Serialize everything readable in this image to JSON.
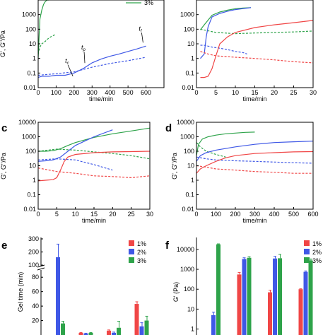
{
  "colors": {
    "red": "#f04646",
    "blue": "#3f58e6",
    "green": "#2ea34a",
    "axis": "#000000"
  },
  "chart_data": [
    {
      "id": "a",
      "panel_label": "",
      "type": "line",
      "xscale": "linear",
      "yscale": "log",
      "xlim": [
        0,
        700
      ],
      "ylim": [
        0.01,
        10000
      ],
      "xticks": [
        "0",
        "100",
        "200",
        "300",
        "400",
        "500",
        "600"
      ],
      "yticks": [
        "0.01",
        "0.1",
        "1",
        "10",
        "100",
        "1000"
      ],
      "xlabel": "time/min",
      "ylabel": "G', G''/Pa",
      "legend": {
        "position": "top-right",
        "entries": [
          {
            "label": "3%",
            "color": "green"
          }
        ]
      },
      "annotations": [
        {
          "text": "t",
          "sub": "c",
          "x": 150,
          "y": 0.5
        },
        {
          "text": "t",
          "sub": "p",
          "x": 240,
          "y": 4
        },
        {
          "text": "t",
          "sub": "f",
          "x": 560,
          "y": 80
        }
      ],
      "series": [
        {
          "color": "blue",
          "style": "solid",
          "x": [
            0,
            20,
            60,
            100,
            150,
            200,
            250,
            300,
            350,
            400,
            450,
            500,
            550,
            600
          ],
          "y": [
            0.05,
            0.06,
            0.06,
            0.07,
            0.07,
            0.1,
            0.2,
            0.5,
            0.9,
            1.4,
            2,
            3,
            4.5,
            7
          ]
        },
        {
          "color": "blue",
          "style": "dashed",
          "x": [
            0,
            100,
            200,
            300,
            400,
            500,
            600
          ],
          "y": [
            0.07,
            0.09,
            0.12,
            0.25,
            0.45,
            0.7,
            1.2
          ]
        },
        {
          "color": "green",
          "style": "solid",
          "x": [
            0,
            5,
            10,
            20,
            30,
            40,
            50,
            60
          ],
          "y": [
            1,
            30,
            500,
            2000,
            5000,
            8000,
            10000,
            10000
          ]
        },
        {
          "color": "green",
          "style": "dashed",
          "x": [
            0,
            10,
            20,
            30,
            40,
            50,
            60,
            70,
            80,
            90,
            100
          ],
          "y": [
            2,
            6,
            10,
            12,
            15,
            20,
            25,
            30,
            35,
            40,
            45
          ]
        }
      ]
    },
    {
      "id": "b",
      "panel_label": "",
      "type": "line",
      "xscale": "linear",
      "yscale": "log",
      "xlim": [
        0,
        30
      ],
      "ylim": [
        0.01,
        10000
      ],
      "xticks": [
        "0",
        "5",
        "10",
        "15",
        "20",
        "25",
        "30"
      ],
      "yticks": [
        "0.01",
        "0.1",
        "1",
        "10",
        "100",
        "1000"
      ],
      "xlabel": "time/min",
      "ylabel": "",
      "series": [
        {
          "color": "green",
          "style": "solid",
          "x": [
            1,
            2,
            4,
            6,
            8,
            10,
            12,
            14
          ],
          "y": [
            90,
            200,
            900,
            1500,
            2000,
            2500,
            2800,
            3000
          ]
        },
        {
          "color": "green",
          "style": "dashed",
          "x": [
            1,
            5,
            10,
            15,
            20,
            25,
            30
          ],
          "y": [
            100,
            60,
            50,
            55,
            60,
            65,
            75
          ]
        },
        {
          "color": "blue",
          "style": "solid",
          "x": [
            1,
            2,
            2.5,
            3,
            4,
            6,
            8,
            10,
            12,
            14
          ],
          "y": [
            1,
            2,
            30,
            150,
            700,
            1200,
            1700,
            2200,
            2600,
            3000
          ]
        },
        {
          "color": "blue",
          "style": "dashed",
          "x": [
            1,
            2,
            4,
            6,
            8,
            10,
            12,
            13
          ],
          "y": [
            8,
            8,
            6,
            5,
            4,
            3,
            2.5,
            2
          ]
        },
        {
          "color": "red",
          "style": "solid",
          "x": [
            1,
            2,
            3,
            4,
            5,
            6,
            8,
            10,
            15,
            20,
            25,
            30
          ],
          "y": [
            0.05,
            0.05,
            0.06,
            0.2,
            1.5,
            10,
            30,
            60,
            130,
            200,
            280,
            400
          ]
        },
        {
          "color": "red",
          "style": "dashed",
          "x": [
            1,
            3,
            5,
            10,
            15,
            20,
            25,
            30
          ],
          "y": [
            3,
            2,
            1.5,
            1.2,
            1,
            0.8,
            0.6,
            0.5
          ]
        }
      ]
    },
    {
      "id": "c",
      "panel_label": "c",
      "type": "line",
      "xscale": "linear",
      "yscale": "log",
      "xlim": [
        0,
        30
      ],
      "ylim": [
        0.01,
        10000
      ],
      "xticks": [
        "0",
        "5",
        "10",
        "15",
        "20",
        "25",
        "30"
      ],
      "yticks": [
        "0.01",
        "0.1",
        "1",
        "10",
        "100",
        "1000",
        "10000"
      ],
      "xlabel": "time/min",
      "ylabel": "G', G''/Pa",
      "series": [
        {
          "color": "green",
          "style": "solid",
          "x": [
            0,
            2,
            4,
            6,
            8,
            10,
            15,
            20,
            25,
            30
          ],
          "y": [
            100,
            100,
            110,
            150,
            250,
            400,
            900,
            1600,
            2500,
            4000
          ]
        },
        {
          "color": "green",
          "style": "dashed",
          "x": [
            0,
            5,
            10,
            15,
            20,
            25,
            30
          ],
          "y": [
            100,
            140,
            120,
            90,
            70,
            50,
            30
          ]
        },
        {
          "color": "blue",
          "style": "solid",
          "x": [
            0,
            2,
            4,
            6,
            8,
            10,
            15,
            20
          ],
          "y": [
            20,
            22,
            25,
            40,
            100,
            250,
            1000,
            3000
          ]
        },
        {
          "color": "blue",
          "style": "dashed",
          "x": [
            0,
            5,
            10,
            15,
            20
          ],
          "y": [
            25,
            30,
            25,
            12,
            5
          ]
        },
        {
          "color": "red",
          "style": "solid",
          "x": [
            0,
            2,
            4,
            5,
            6,
            7,
            8,
            10,
            15,
            20,
            25,
            30
          ],
          "y": [
            0.9,
            1,
            1.1,
            1.5,
            5,
            20,
            40,
            60,
            80,
            90,
            95,
            100
          ]
        },
        {
          "color": "red",
          "style": "dashed",
          "x": [
            0,
            5,
            10,
            15,
            20,
            25,
            30
          ],
          "y": [
            7,
            4,
            3,
            2,
            1.8,
            1.5,
            2
          ]
        }
      ]
    },
    {
      "id": "d",
      "panel_label": "d",
      "type": "line",
      "xscale": "linear",
      "yscale": "log",
      "xlim": [
        0,
        600
      ],
      "ylim": [
        0.01,
        10000
      ],
      "xticks": [
        "0",
        "100",
        "200",
        "300",
        "400",
        "500",
        "600"
      ],
      "yticks": [
        "0.01",
        "0.1",
        "1",
        "10",
        "100",
        "1000",
        "10000"
      ],
      "xlabel": "time/min",
      "ylabel": "G', G''/Pa",
      "series": [
        {
          "color": "green",
          "style": "solid",
          "x": [
            0,
            10,
            30,
            60,
            100,
            150,
            200,
            250,
            300
          ],
          "y": [
            50,
            300,
            700,
            1000,
            1300,
            1600,
            1800,
            2000,
            2100
          ]
        },
        {
          "color": "green",
          "style": "dashed",
          "x": [
            0,
            20,
            50,
            100,
            150
          ],
          "y": [
            400,
            200,
            100,
            60,
            40
          ]
        },
        {
          "color": "blue",
          "style": "solid",
          "x": [
            0,
            20,
            50,
            100,
            200,
            300,
            400,
            500,
            600
          ],
          "y": [
            20,
            50,
            80,
            120,
            200,
            300,
            400,
            450,
            500
          ]
        },
        {
          "color": "blue",
          "style": "dashed",
          "x": [
            0,
            50,
            100,
            200,
            300,
            400,
            500,
            600
          ],
          "y": [
            40,
            30,
            25,
            22,
            20,
            18,
            16,
            15
          ]
        },
        {
          "color": "red",
          "style": "solid",
          "x": [
            0,
            20,
            50,
            100,
            150,
            200,
            300,
            400,
            500,
            600
          ],
          "y": [
            3,
            6,
            10,
            20,
            35,
            50,
            70,
            80,
            90,
            95
          ]
        },
        {
          "color": "red",
          "style": "dashed",
          "x": [
            0,
            50,
            100,
            200,
            300,
            400,
            500,
            600
          ],
          "y": [
            10,
            8,
            6,
            5,
            4,
            3.5,
            3,
            3
          ]
        }
      ]
    },
    {
      "id": "e",
      "panel_label": "e",
      "type": "bar",
      "ylabel": "Gel time (min)",
      "yticks": [
        "20",
        "40",
        "60",
        "80",
        "100",
        "200",
        "300"
      ],
      "axis_break": [
        90,
        95
      ],
      "legend": {
        "position": "top-right",
        "entries": [
          {
            "label": "1%",
            "color": "red"
          },
          {
            "label": "2%",
            "color": "blue"
          },
          {
            "label": "3%",
            "color": "green"
          }
        ]
      },
      "groups": [
        {
          "values": [
            null,
            160,
            16
          ],
          "errors": [
            null,
            100,
            3
          ]
        },
        {
          "values": [
            3,
            2,
            3
          ],
          "errors": [
            0.5,
            0.5,
            0.5
          ]
        },
        {
          "values": [
            6,
            3,
            10
          ],
          "errors": [
            1,
            1,
            9
          ]
        },
        {
          "values": [
            43,
            12,
            20
          ],
          "errors": [
            3,
            5,
            6
          ]
        }
      ]
    },
    {
      "id": "f",
      "panel_label": "f",
      "type": "bar",
      "yscale": "log",
      "ylabel": "G' (Pa)",
      "yticks": [
        "1",
        "10",
        "100",
        "1000",
        "10000"
      ],
      "legend": {
        "position": "top-right",
        "entries": [
          {
            "label": "1%",
            "color": "red"
          },
          {
            "label": "2%",
            "color": "blue"
          },
          {
            "label": "3%",
            "color": "green"
          }
        ]
      },
      "groups": [
        {
          "values": [
            null,
            5,
            18000
          ],
          "errors": [
            null,
            2,
            1000
          ]
        },
        {
          "values": [
            550,
            3300,
            3800
          ],
          "errors": [
            150,
            500,
            500
          ]
        },
        {
          "values": [
            70,
            3500,
            3600
          ],
          "errors": [
            20,
            1000,
            2000
          ]
        },
        {
          "values": [
            100,
            750,
            2800
          ],
          "errors": [
            5,
            80,
            500
          ]
        }
      ]
    }
  ]
}
